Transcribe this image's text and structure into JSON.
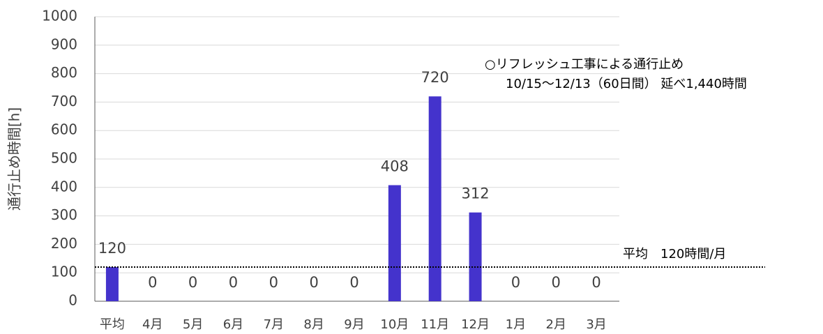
{
  "chart_data": {
    "type": "bar",
    "y_axis_label": "通行止め時間[h]",
    "categories": [
      "平均",
      "4月",
      "5月",
      "6月",
      "7月",
      "8月",
      "9月",
      "10月",
      "11月",
      "12月",
      "1月",
      "2月",
      "3月"
    ],
    "values": [
      120,
      0,
      0,
      0,
      0,
      0,
      0,
      408,
      720,
      312,
      0,
      0,
      0
    ],
    "color": "#4433cc",
    "ylim": [
      0,
      1000
    ],
    "yticks": [
      0,
      100,
      200,
      300,
      400,
      500,
      600,
      700,
      800,
      900,
      1000
    ],
    "grid": true,
    "average_line": 120,
    "annotations": [
      "○リフレッシュ工事による通行止め",
      "10/15～12/13（60日間） 延べ1,440時間",
      "平均　120時間/月"
    ]
  }
}
